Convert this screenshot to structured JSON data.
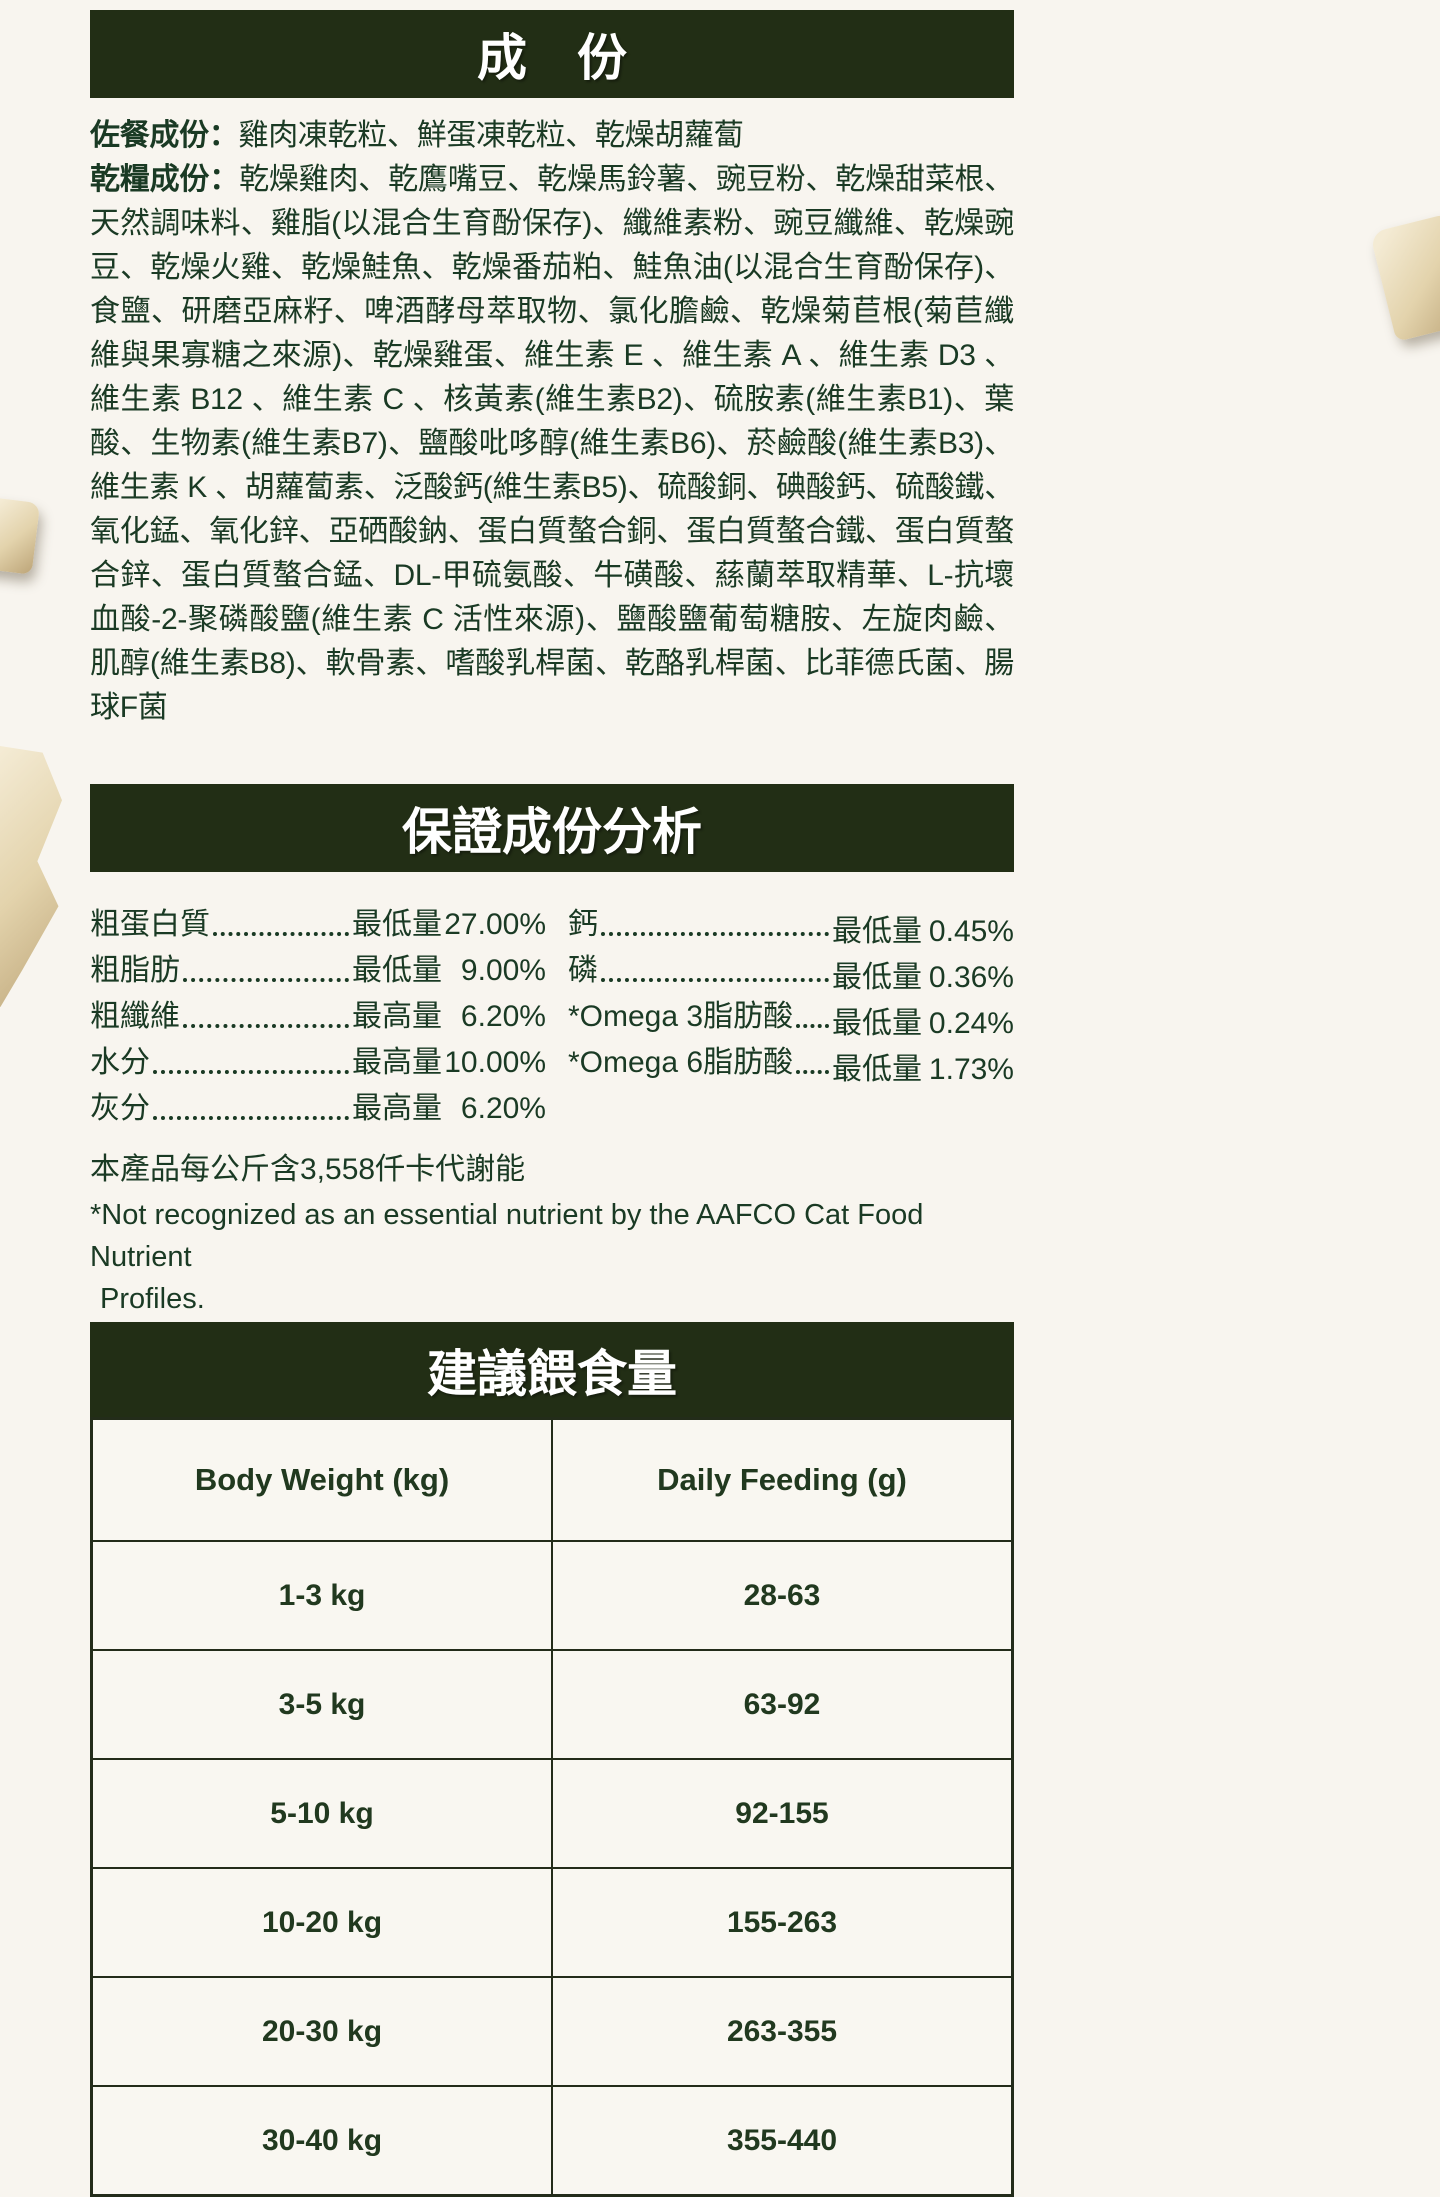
{
  "colors": {
    "banner_bg": "#222e15",
    "text_green": "#1a3a24",
    "page_bg": "#f8f5ef",
    "chunk_cream": "#e9dcba"
  },
  "banners": {
    "ingredients": "成　份",
    "analysis": "保證成份分析",
    "feeding": "建議餵食量"
  },
  "ingredients": {
    "topping_label": "佐餐成份：",
    "topping_text": "雞肉凍乾粒、鮮蛋凍乾粒、乾燥胡蘿蔔",
    "kibble_label": "乾糧成份：",
    "kibble_text": "乾燥雞肉、乾鷹嘴豆、乾燥馬鈴薯、豌豆粉、乾燥甜菜根、天然調味料、雞脂(以混合生育酚保存)、纖維素粉、豌豆纖維、乾燥豌豆、乾燥火雞、乾燥鮭魚、乾燥番茄粕、鮭魚油(以混合生育酚保存)、食鹽、研磨亞麻籽、啤酒酵母萃取物、氯化膽鹼、乾燥菊苣根(菊苣纖維與果寡糖之來源)、乾燥雞蛋、維生素 E 、維生素 A 、維生素 D3 、維生素 B12 、維生素 C 、核黃素(維生素B2)、硫胺素(維生素B1)、葉酸、生物素(維生素B7)、鹽酸吡哆醇(維生素B6)、菸鹼酸(維生素B3)、維生素 K 、胡蘿蔔素、泛酸鈣(維生素B5)、硫酸銅、碘酸鈣、硫酸鐵、氧化錳、氧化鋅、亞硒酸鈉、蛋白質螯合銅、蛋白質螯合鐵、蛋白質螯合鋅、蛋白質螯合錳、DL-甲硫氨酸、牛磺酸、蕬蘭萃取精華、L-抗壞血酸-2-聚磷酸鹽(維生素 C 活性來源)、鹽酸鹽葡萄糖胺、左旋肉鹼、肌醇(維生素B8)、軟骨素、嗜酸乳桿菌、乾酪乳桿菌、比菲德氏菌、腸球F菌"
  },
  "analysis": {
    "left": [
      {
        "label": "粗蛋白質",
        "qualifier": "最低量",
        "value": "27.00%"
      },
      {
        "label": "粗脂肪",
        "qualifier": "最低量",
        "value": "9.00%"
      },
      {
        "label": "粗纖維",
        "qualifier": "最高量",
        "value": "6.20%"
      },
      {
        "label": "水分",
        "qualifier": "最高量",
        "value": "10.00%"
      },
      {
        "label": "灰分",
        "qualifier": "最高量",
        "value": "6.20%"
      }
    ],
    "right": [
      {
        "label": "鈣",
        "qualifier": "最低量",
        "value": "0.45%"
      },
      {
        "label": "磷",
        "qualifier": "最低量",
        "value": "0.36%"
      },
      {
        "label": "*Omega 3脂肪酸",
        "qualifier": "最低量",
        "value": "0.24%"
      },
      {
        "label": "*Omega 6脂肪酸",
        "qualifier": "最低量",
        "value": "1.73%"
      }
    ],
    "energy_note": "本產品每公斤含3,558仟卡代謝能",
    "footnote_line1": "*Not recognized as an essential nutrient by the AAFCO Cat Food Nutrient",
    "footnote_line2": "Profiles."
  },
  "feeding_table": {
    "columns": [
      "Body Weight (kg)",
      "Daily Feeding (g)"
    ],
    "rows": [
      {
        "weight": "1-3 kg",
        "amount": "28-63"
      },
      {
        "weight": "3-5 kg",
        "amount": "63-92"
      },
      {
        "weight": "5-10 kg",
        "amount": "92-155"
      },
      {
        "weight": "10-20 kg",
        "amount": "155-263"
      },
      {
        "weight": "20-30 kg",
        "amount": "263-355"
      },
      {
        "weight": "30-40 kg",
        "amount": "355-440"
      }
    ]
  }
}
